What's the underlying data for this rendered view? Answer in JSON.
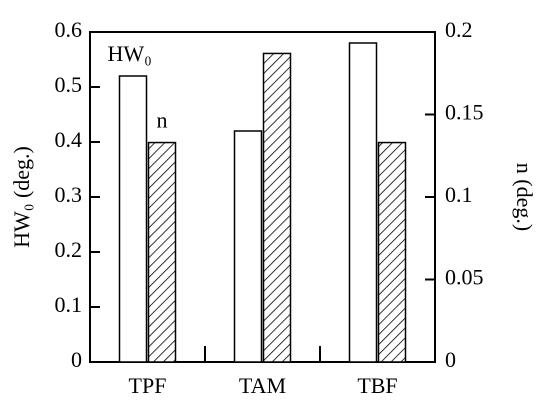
{
  "chart_data": {
    "type": "bar",
    "categories": [
      "TPF",
      "TAM",
      "TBF"
    ],
    "series": [
      {
        "name": "HW₀",
        "color": "#ffffff",
        "values": [
          0.52,
          0.42,
          0.58
        ]
      },
      {
        "name": "n",
        "color": "#ffffff",
        "hatch": true,
        "axis": "y2",
        "values": [
          0.133,
          0.187,
          0.133
        ]
      }
    ],
    "ylabel": "HW₀ (deg.)",
    "y2label": "n (deg.)",
    "ylim": [
      0,
      0.6
    ],
    "yticks": [
      0,
      0.1,
      0.2,
      0.3,
      0.4,
      0.5,
      0.6
    ],
    "y2lim": [
      0,
      0.2
    ],
    "y2ticks": [
      0,
      0.05,
      0.1,
      0.15,
      0.2
    ]
  }
}
